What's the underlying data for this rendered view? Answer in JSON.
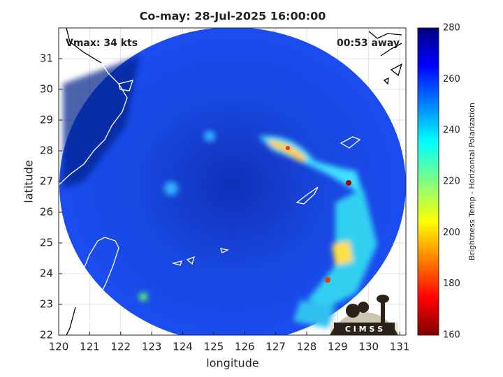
{
  "title": "Co-may: 28-Jul-2025 16:00:00",
  "annotations": {
    "vmax": "Vmax: 34 kts",
    "time_away": "00:53 away"
  },
  "axes": {
    "xlabel": "longitude",
    "ylabel": "latitude",
    "xlim": [
      120,
      131.2
    ],
    "ylim": [
      22,
      32
    ],
    "xticks": [
      120,
      121,
      122,
      123,
      124,
      125,
      126,
      127,
      128,
      129,
      130,
      131
    ],
    "yticks": [
      22,
      23,
      24,
      25,
      26,
      27,
      28,
      29,
      30,
      31
    ],
    "grid": true
  },
  "colorbar": {
    "label": "Brightness Temp - Horizontal Polarization",
    "lim": [
      160,
      280
    ],
    "ticks": [
      160,
      180,
      200,
      220,
      240,
      260,
      280
    ]
  },
  "logo": "C I M S S"
}
